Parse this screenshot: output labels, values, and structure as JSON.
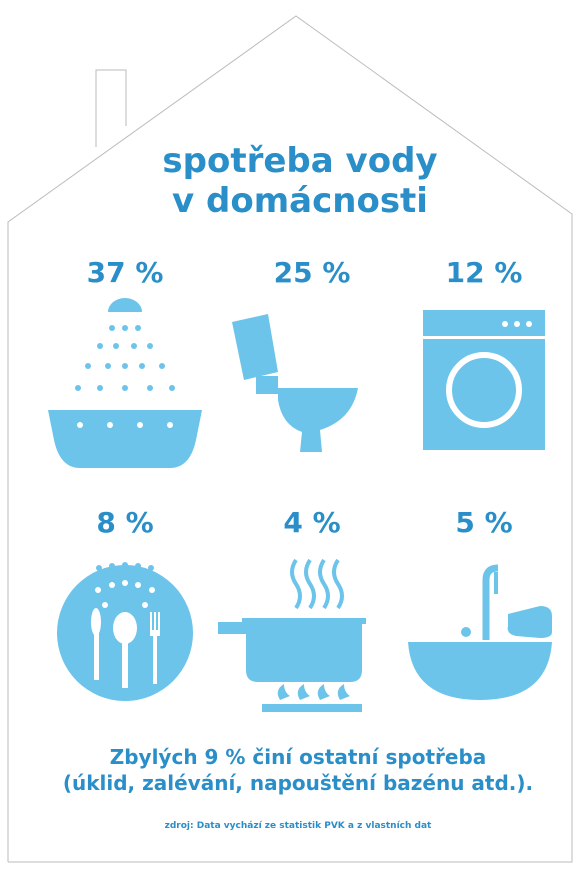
{
  "title": [
    "spotřeba vody",
    "v domácnosti"
  ],
  "items": [
    {
      "label": "37 %"
    },
    {
      "label": "25 %"
    },
    {
      "label": "12 %"
    },
    {
      "label": "8 %"
    },
    {
      "label": "4 %"
    },
    {
      "label": "5 %"
    }
  ],
  "footer": [
    "Zbylých 9 % činí ostatní spotřeba",
    "(úklid, zalévání, napouštění bazénu atd.)."
  ],
  "source": "zdroj: Data vychází ze statistik PVK a z vlastních dat"
}
